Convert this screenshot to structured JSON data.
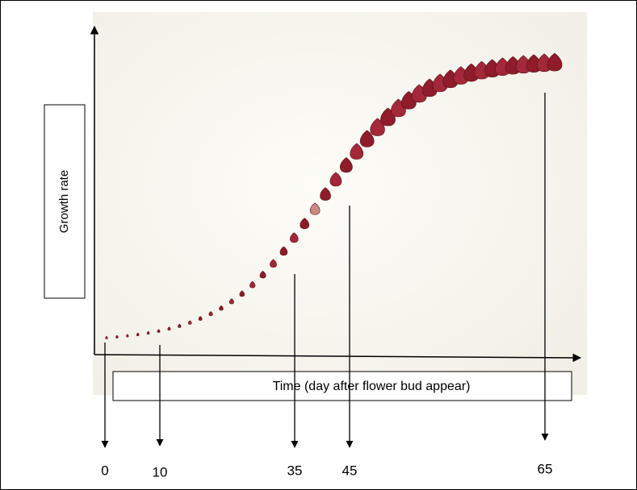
{
  "axis_labels": {
    "y": "Growth rate",
    "x": "Time (day after flower bud appear)"
  },
  "markers": [
    {
      "label": "0"
    },
    {
      "label": "10"
    },
    {
      "label": "35"
    },
    {
      "label": "45"
    },
    {
      "label": "65"
    }
  ]
}
